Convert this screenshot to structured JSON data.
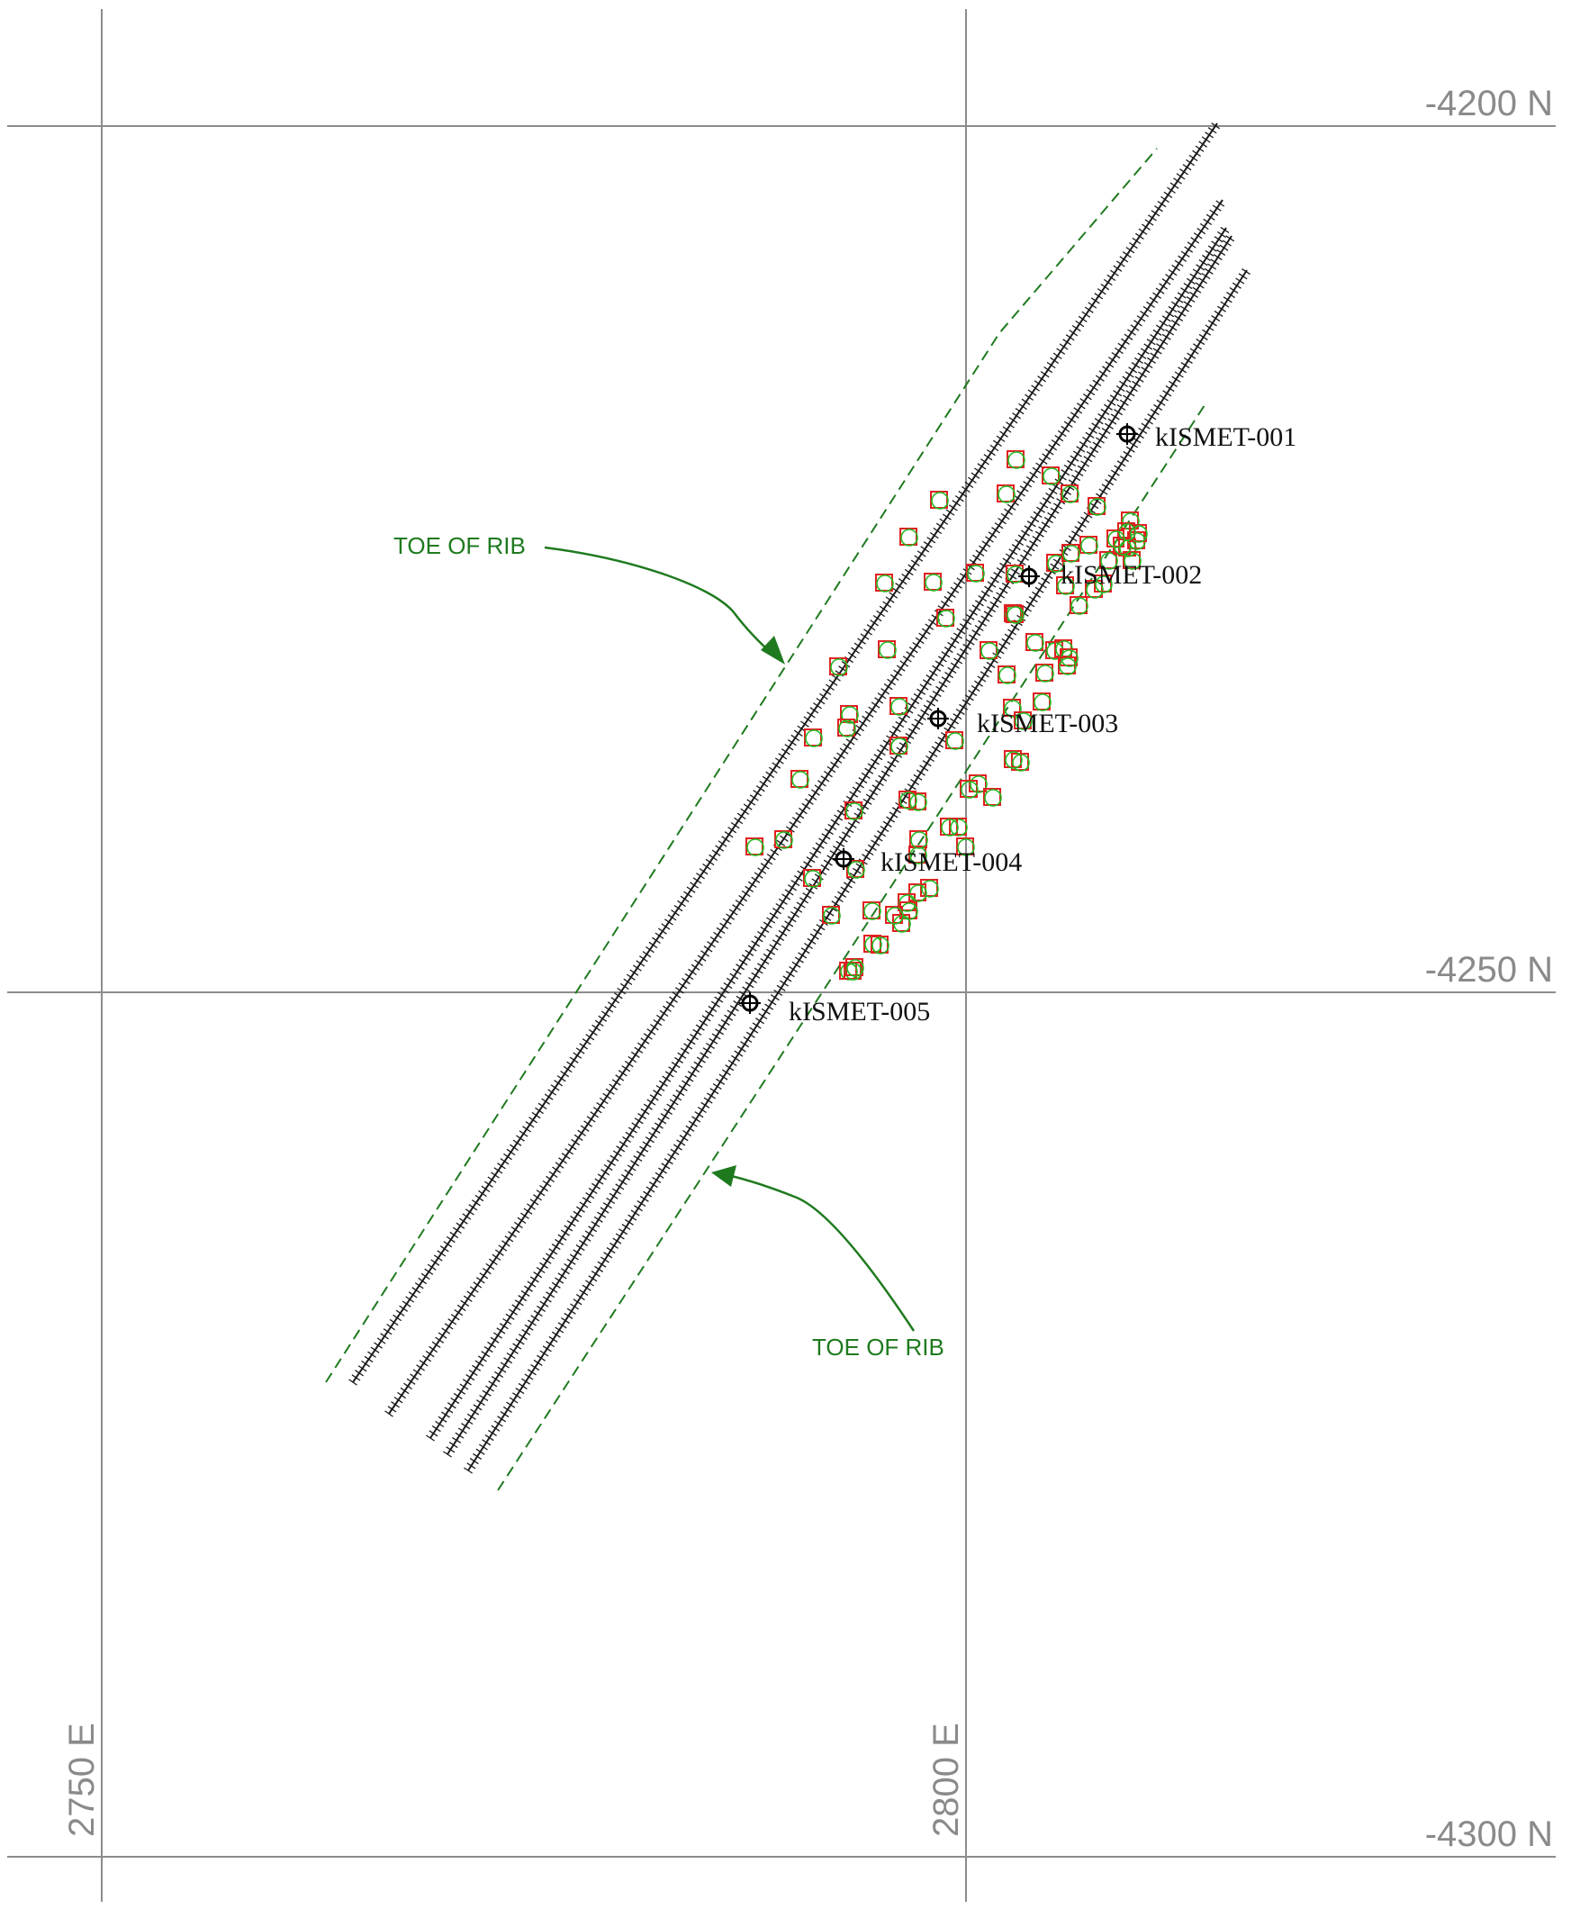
{
  "colors": {
    "grid": "#8c8c8c",
    "hole": "#1a1a1a",
    "rib": "#1f7a1f",
    "marker_square": "#e02020",
    "marker_circle": "#22bb22",
    "well": "#000000",
    "label": "#111111"
  },
  "grid": {
    "northings": [
      {
        "label": "-4200 N"
      },
      {
        "label": "-4250 N"
      },
      {
        "label": "-4300 N"
      }
    ],
    "eastings": [
      {
        "label": "2750 E"
      },
      {
        "label": "2800 E"
      }
    ]
  },
  "wells": [
    {
      "id": "kISMET-001"
    },
    {
      "id": "kISMET-002"
    },
    {
      "id": "kISMET-003"
    },
    {
      "id": "kISMET-004"
    },
    {
      "id": "kISMET-005"
    }
  ],
  "annotations": [
    {
      "text": "TOE OF RIB"
    },
    {
      "text": "TOE OF RIB"
    }
  ],
  "icons": {
    "well": "crosshair-circle-icon",
    "arrow": "arrowhead-icon"
  }
}
